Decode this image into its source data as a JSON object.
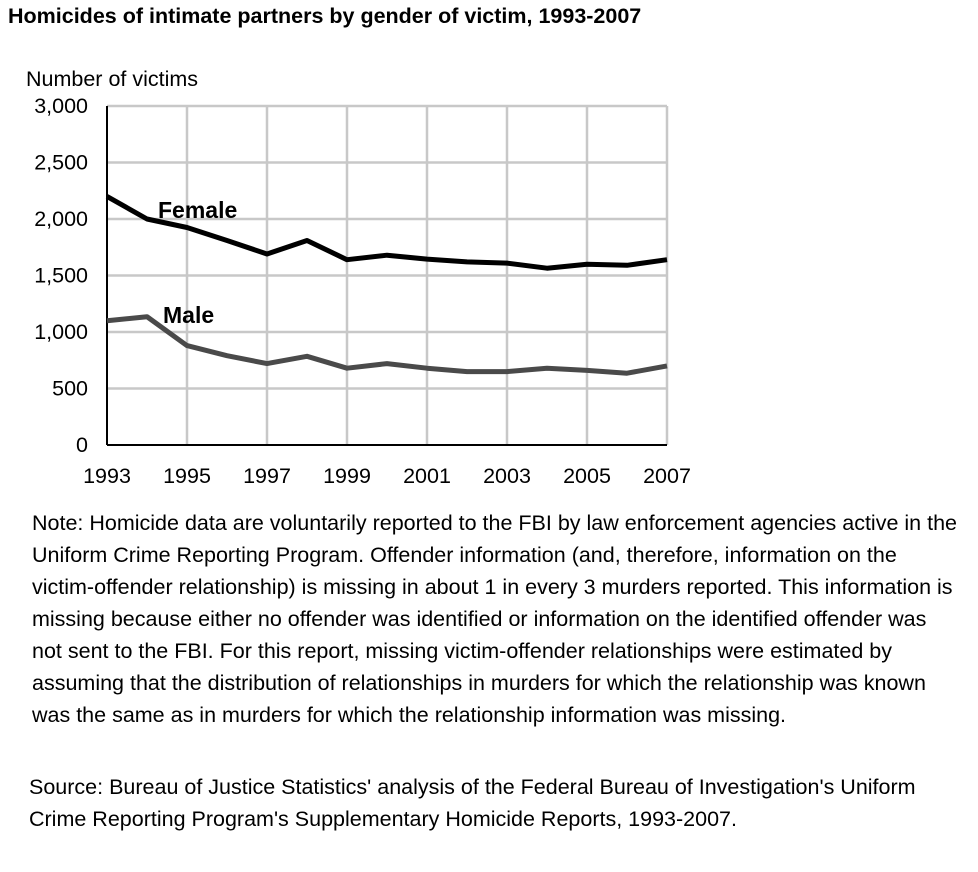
{
  "title": "Homicides of intimate partners by gender of victim, 1993-2007",
  "note": "Note:  Homicide data are voluntarily reported to the FBI by law enforcement agencies active in the Uniform Crime Reporting Program. Offender information (and, therefore, information on the victim-offender relationship) is missing in about 1 in every 3 murders reported. This information is missing because either no offender was identified or information on the identified offender was not sent to the FBI. For this report, missing victim-offender relationships were estimated by assuming that the distribution of relationships in murders for which the relationship was known was the same as in murders for which the relationship information was missing.",
  "source": "Source: Bureau of Justice Statistics' analysis of the Federal Bureau of Investigation's Uniform Crime Reporting Program's Supplementary Homicide Reports, 1993-2007.",
  "chart_data": {
    "type": "line",
    "title": "Homicides of intimate partners by gender of victim, 1993-2007",
    "ylabel": "Number of victims",
    "xlabel": "",
    "ylim": [
      0,
      3000
    ],
    "xlim": [
      1993,
      2007
    ],
    "yticks": [
      0,
      500,
      1000,
      1500,
      2000,
      2500,
      3000
    ],
    "ytick_labels": [
      "0",
      "500",
      "1,000",
      "1,500",
      "2,000",
      "2,500",
      "3,000"
    ],
    "xticks": [
      1993,
      1995,
      1997,
      1999,
      2001,
      2003,
      2005,
      2007
    ],
    "xtick_labels": [
      "1993",
      "1995",
      "1997",
      "1999",
      "2001",
      "2003",
      "2005",
      "2007"
    ],
    "grid": true,
    "legend": "inline labels",
    "x": [
      1993,
      1994,
      1995,
      1996,
      1997,
      1998,
      1999,
      2000,
      2001,
      2002,
      2003,
      2004,
      2005,
      2006,
      2007
    ],
    "series": [
      {
        "name": "Female",
        "color": "#000000",
        "values": [
          2200,
          2000,
          1925,
          1810,
          1690,
          1810,
          1640,
          1680,
          1645,
          1620,
          1610,
          1565,
          1600,
          1590,
          1640
        ]
      },
      {
        "name": "Male",
        "color": "#4a4a4a",
        "values": [
          1100,
          1135,
          880,
          790,
          720,
          785,
          680,
          720,
          680,
          650,
          650,
          680,
          660,
          635,
          700
        ]
      }
    ]
  }
}
